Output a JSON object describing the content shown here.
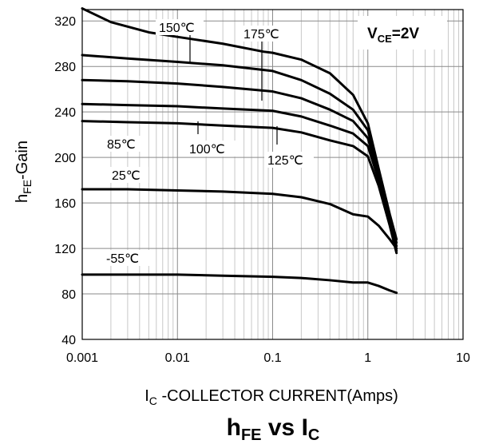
{
  "chart_data": {
    "type": "line",
    "x_scale": "log",
    "xlim": [
      0.001,
      10
    ],
    "ylim": [
      40,
      330
    ],
    "grid": true,
    "xticks": [
      "0.001",
      "0.01",
      "0.1",
      "1",
      "10"
    ],
    "yticks": [
      "40",
      "80",
      "120",
      "160",
      "200",
      "240",
      "280",
      "320"
    ],
    "xlabel": {
      "main": "I",
      "sub": "C",
      "rest": " -COLLECTOR CURRENT(Amps)"
    },
    "ylabel": {
      "main": "h",
      "sub": "FE",
      "rest": "-Gain"
    },
    "title": {
      "main": "h",
      "sub1": "FE",
      "mid": " vs I",
      "sub2": "C"
    },
    "condition": {
      "main": "V",
      "sub": "CE",
      "rest": "=2V"
    },
    "series": [
      {
        "name": "150℃",
        "points": [
          [
            0.001,
            331
          ],
          [
            0.002,
            319
          ],
          [
            0.005,
            310
          ],
          [
            0.01,
            306
          ],
          [
            0.03,
            300
          ],
          [
            0.08,
            293
          ],
          [
            0.1,
            292
          ],
          [
            0.2,
            286
          ],
          [
            0.4,
            274
          ],
          [
            0.7,
            255
          ],
          [
            1.0,
            230
          ],
          [
            1.3,
            190
          ],
          [
            1.7,
            150
          ],
          [
            2.0,
            128
          ]
        ]
      },
      {
        "name": "175℃",
        "points": [
          [
            0.001,
            290
          ],
          [
            0.003,
            287
          ],
          [
            0.01,
            284
          ],
          [
            0.03,
            281
          ],
          [
            0.1,
            276
          ],
          [
            0.2,
            268
          ],
          [
            0.4,
            256
          ],
          [
            0.7,
            242
          ],
          [
            1.0,
            224
          ],
          [
            1.3,
            188
          ],
          [
            1.7,
            148
          ],
          [
            2.0,
            125
          ]
        ]
      },
      {
        "name": "",
        "points": [
          [
            0.001,
            268
          ],
          [
            0.003,
            267
          ],
          [
            0.01,
            265
          ],
          [
            0.03,
            262
          ],
          [
            0.1,
            258
          ],
          [
            0.2,
            252
          ],
          [
            0.4,
            242
          ],
          [
            0.7,
            232
          ],
          [
            1.0,
            217
          ],
          [
            1.3,
            185
          ],
          [
            1.7,
            145
          ],
          [
            2.0,
            122
          ]
        ]
      },
      {
        "name": "125℃",
        "points": [
          [
            0.001,
            247
          ],
          [
            0.003,
            246
          ],
          [
            0.01,
            245
          ],
          [
            0.03,
            243
          ],
          [
            0.1,
            241
          ],
          [
            0.2,
            236
          ],
          [
            0.4,
            228
          ],
          [
            0.7,
            221
          ],
          [
            1.0,
            210
          ],
          [
            1.3,
            180
          ],
          [
            1.7,
            143
          ],
          [
            2.0,
            118
          ]
        ]
      },
      {
        "name": "100℃",
        "points": [
          [
            0.001,
            232
          ],
          [
            0.003,
            231
          ],
          [
            0.01,
            230
          ],
          [
            0.03,
            228
          ],
          [
            0.1,
            226
          ],
          [
            0.2,
            222
          ],
          [
            0.4,
            215
          ],
          [
            0.7,
            210
          ],
          [
            1.0,
            201
          ],
          [
            1.3,
            175
          ],
          [
            1.7,
            140
          ],
          [
            2.0,
            116
          ]
        ]
      },
      {
        "name": "25℃",
        "points": [
          [
            0.001,
            172
          ],
          [
            0.003,
            172
          ],
          [
            0.01,
            171
          ],
          [
            0.03,
            170
          ],
          [
            0.1,
            168
          ],
          [
            0.2,
            165
          ],
          [
            0.4,
            159
          ],
          [
            0.7,
            150
          ],
          [
            1.0,
            148
          ],
          [
            1.3,
            140
          ],
          [
            1.7,
            128
          ],
          [
            2.0,
            120
          ]
        ]
      },
      {
        "name": "-55℃",
        "points": [
          [
            0.001,
            97
          ],
          [
            0.003,
            97
          ],
          [
            0.01,
            97
          ],
          [
            0.03,
            96
          ],
          [
            0.1,
            95
          ],
          [
            0.2,
            94
          ],
          [
            0.4,
            92
          ],
          [
            0.7,
            90
          ],
          [
            1.0,
            90
          ],
          [
            1.3,
            87
          ],
          [
            1.7,
            83
          ],
          [
            2.0,
            81
          ]
        ]
      }
    ],
    "extra_labels": [
      "85℃"
    ]
  }
}
